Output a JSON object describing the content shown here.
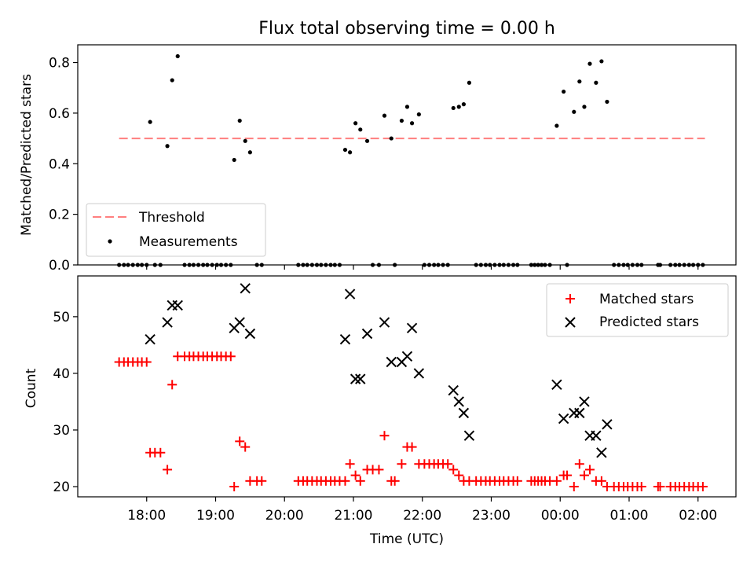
{
  "chart_data": [
    {
      "type": "scatter",
      "title": "Flux total observing time = 0.00 h",
      "xlabel": "",
      "ylabel": "Matched/Predicted stars",
      "xlim_hours": [
        17.0,
        26.55
      ],
      "ylim": [
        0,
        0.87
      ],
      "yticks": [
        0.0,
        0.2,
        0.4,
        0.6,
        0.8
      ],
      "ytick_labels": [
        "0.0",
        "0.2",
        "0.4",
        "0.6",
        "0.8"
      ],
      "xticks_hours": [
        18,
        19,
        20,
        21,
        22,
        23,
        24,
        25,
        26
      ],
      "grid": false,
      "legend": {
        "placement": "lower-left",
        "entries": [
          {
            "label": "Threshold",
            "style": "dashed-line",
            "color": "#ff7f7f"
          },
          {
            "label": "Measurements",
            "style": "dot",
            "color": "#000000"
          }
        ]
      },
      "threshold": {
        "value": 0.5,
        "x_start": 17.6,
        "x_end": 26.1
      },
      "series": [
        {
          "name": "Measurements",
          "points": [
            [
              17.6,
              0
            ],
            [
              17.67,
              0
            ],
            [
              17.73,
              0
            ],
            [
              17.8,
              0
            ],
            [
              17.87,
              0
            ],
            [
              17.93,
              0
            ],
            [
              18.0,
              0
            ],
            [
              18.05,
              0.565
            ],
            [
              18.12,
              0
            ],
            [
              18.2,
              0
            ],
            [
              18.3,
              0.47
            ],
            [
              18.37,
              0.73
            ],
            [
              18.45,
              0.825
            ],
            [
              18.55,
              0
            ],
            [
              18.62,
              0
            ],
            [
              18.68,
              0
            ],
            [
              18.75,
              0
            ],
            [
              18.82,
              0
            ],
            [
              18.88,
              0
            ],
            [
              18.95,
              0
            ],
            [
              19.02,
              0
            ],
            [
              19.08,
              0
            ],
            [
              19.15,
              0
            ],
            [
              19.22,
              0
            ],
            [
              19.27,
              0.415
            ],
            [
              19.35,
              0.57
            ],
            [
              19.43,
              0.49
            ],
            [
              19.5,
              0.445
            ],
            [
              19.6,
              0
            ],
            [
              19.67,
              0
            ],
            [
              20.2,
              0
            ],
            [
              20.27,
              0
            ],
            [
              20.33,
              0
            ],
            [
              20.4,
              0
            ],
            [
              20.47,
              0
            ],
            [
              20.53,
              0
            ],
            [
              20.6,
              0
            ],
            [
              20.67,
              0
            ],
            [
              20.73,
              0
            ],
            [
              20.8,
              0
            ],
            [
              20.88,
              0.455
            ],
            [
              20.95,
              0.445
            ],
            [
              21.03,
              0.56
            ],
            [
              21.1,
              0.535
            ],
            [
              21.2,
              0.49
            ],
            [
              21.28,
              0
            ],
            [
              21.37,
              0
            ],
            [
              21.45,
              0.59
            ],
            [
              21.55,
              0.5
            ],
            [
              21.6,
              0
            ],
            [
              21.7,
              0.57
            ],
            [
              21.78,
              0.625
            ],
            [
              21.85,
              0.56
            ],
            [
              21.95,
              0.595
            ],
            [
              22.03,
              0
            ],
            [
              22.1,
              0
            ],
            [
              22.17,
              0
            ],
            [
              22.23,
              0
            ],
            [
              22.3,
              0
            ],
            [
              22.37,
              0
            ],
            [
              22.45,
              0.62
            ],
            [
              22.53,
              0.625
            ],
            [
              22.6,
              0.635
            ],
            [
              22.68,
              0.72
            ],
            [
              22.78,
              0
            ],
            [
              22.85,
              0
            ],
            [
              22.92,
              0
            ],
            [
              22.98,
              0
            ],
            [
              23.05,
              0
            ],
            [
              23.12,
              0
            ],
            [
              23.18,
              0
            ],
            [
              23.25,
              0
            ],
            [
              23.32,
              0
            ],
            [
              23.38,
              0
            ],
            [
              23.58,
              0
            ],
            [
              23.63,
              0
            ],
            [
              23.68,
              0
            ],
            [
              23.73,
              0
            ],
            [
              23.78,
              0
            ],
            [
              23.85,
              0
            ],
            [
              23.95,
              0.55
            ],
            [
              24.05,
              0.685
            ],
            [
              24.1,
              0
            ],
            [
              24.2,
              0.605
            ],
            [
              24.28,
              0.725
            ],
            [
              24.35,
              0.625
            ],
            [
              24.43,
              0.795
            ],
            [
              24.52,
              0.72
            ],
            [
              24.6,
              0.805
            ],
            [
              24.68,
              0.645
            ],
            [
              24.78,
              0
            ],
            [
              24.85,
              0
            ],
            [
              24.92,
              0
            ],
            [
              24.98,
              0
            ],
            [
              25.05,
              0
            ],
            [
              25.12,
              0
            ],
            [
              25.18,
              0
            ],
            [
              25.42,
              0
            ],
            [
              25.45,
              0
            ],
            [
              25.6,
              0
            ],
            [
              25.67,
              0
            ],
            [
              25.73,
              0
            ],
            [
              25.8,
              0
            ],
            [
              25.87,
              0
            ],
            [
              25.93,
              0
            ],
            [
              26.0,
              0
            ],
            [
              26.07,
              0
            ]
          ]
        }
      ]
    },
    {
      "type": "scatter",
      "title": "",
      "xlabel": "Time (UTC)",
      "ylabel": "Count",
      "xlim_hours": [
        17.0,
        26.55
      ],
      "ylim": [
        18.2,
        57.2
      ],
      "yticks": [
        20,
        30,
        40,
        50
      ],
      "ytick_labels": [
        "20",
        "30",
        "40",
        "50"
      ],
      "xticks_hours": [
        18,
        19,
        20,
        21,
        22,
        23,
        24,
        25,
        26
      ],
      "xtick_labels": [
        "18:00",
        "19:00",
        "20:00",
        "21:00",
        "22:00",
        "23:00",
        "00:00",
        "01:00",
        "02:00"
      ],
      "grid": false,
      "legend": {
        "placement": "top-right",
        "entries": [
          {
            "label": "Matched stars",
            "marker": "plus",
            "color": "#ff0000"
          },
          {
            "label": "Predicted stars",
            "marker": "x",
            "color": "#000000"
          }
        ]
      },
      "series": [
        {
          "name": "Matched stars",
          "marker": "plus",
          "color": "#ff0000",
          "points": [
            [
              17.6,
              42
            ],
            [
              17.67,
              42
            ],
            [
              17.73,
              42
            ],
            [
              17.8,
              42
            ],
            [
              17.87,
              42
            ],
            [
              17.93,
              42
            ],
            [
              18.0,
              42
            ],
            [
              18.05,
              26
            ],
            [
              18.12,
              26
            ],
            [
              18.2,
              26
            ],
            [
              18.3,
              23
            ],
            [
              18.37,
              38
            ],
            [
              18.45,
              43
            ],
            [
              18.55,
              43
            ],
            [
              18.62,
              43
            ],
            [
              18.68,
              43
            ],
            [
              18.75,
              43
            ],
            [
              18.82,
              43
            ],
            [
              18.88,
              43
            ],
            [
              18.95,
              43
            ],
            [
              19.02,
              43
            ],
            [
              19.08,
              43
            ],
            [
              19.15,
              43
            ],
            [
              19.22,
              43
            ],
            [
              19.27,
              20
            ],
            [
              19.35,
              28
            ],
            [
              19.43,
              27
            ],
            [
              19.5,
              21
            ],
            [
              19.6,
              21
            ],
            [
              19.67,
              21
            ],
            [
              20.2,
              21
            ],
            [
              20.27,
              21
            ],
            [
              20.33,
              21
            ],
            [
              20.4,
              21
            ],
            [
              20.47,
              21
            ],
            [
              20.53,
              21
            ],
            [
              20.6,
              21
            ],
            [
              20.67,
              21
            ],
            [
              20.73,
              21
            ],
            [
              20.8,
              21
            ],
            [
              20.88,
              21
            ],
            [
              20.95,
              24
            ],
            [
              21.03,
              22
            ],
            [
              21.1,
              21
            ],
            [
              21.2,
              23
            ],
            [
              21.28,
              23
            ],
            [
              21.37,
              23
            ],
            [
              21.45,
              29
            ],
            [
              21.55,
              21
            ],
            [
              21.6,
              21
            ],
            [
              21.7,
              24
            ],
            [
              21.78,
              27
            ],
            [
              21.85,
              27
            ],
            [
              21.95,
              24
            ],
            [
              22.03,
              24
            ],
            [
              22.1,
              24
            ],
            [
              22.17,
              24
            ],
            [
              22.23,
              24
            ],
            [
              22.3,
              24
            ],
            [
              22.37,
              24
            ],
            [
              22.45,
              23
            ],
            [
              22.53,
              22
            ],
            [
              22.6,
              21
            ],
            [
              22.68,
              21
            ],
            [
              22.78,
              21
            ],
            [
              22.85,
              21
            ],
            [
              22.92,
              21
            ],
            [
              22.98,
              21
            ],
            [
              23.05,
              21
            ],
            [
              23.12,
              21
            ],
            [
              23.18,
              21
            ],
            [
              23.25,
              21
            ],
            [
              23.32,
              21
            ],
            [
              23.38,
              21
            ],
            [
              23.58,
              21
            ],
            [
              23.63,
              21
            ],
            [
              23.68,
              21
            ],
            [
              23.73,
              21
            ],
            [
              23.78,
              21
            ],
            [
              23.85,
              21
            ],
            [
              23.95,
              21
            ],
            [
              24.05,
              22
            ],
            [
              24.1,
              22
            ],
            [
              24.2,
              20
            ],
            [
              24.28,
              24
            ],
            [
              24.35,
              22
            ],
            [
              24.43,
              23
            ],
            [
              24.52,
              21
            ],
            [
              24.6,
              21
            ],
            [
              24.68,
              20
            ],
            [
              24.78,
              20
            ],
            [
              24.85,
              20
            ],
            [
              24.92,
              20
            ],
            [
              24.98,
              20
            ],
            [
              25.05,
              20
            ],
            [
              25.12,
              20
            ],
            [
              25.18,
              20
            ],
            [
              25.42,
              20
            ],
            [
              25.45,
              20
            ],
            [
              25.6,
              20
            ],
            [
              25.67,
              20
            ],
            [
              25.73,
              20
            ],
            [
              25.8,
              20
            ],
            [
              25.87,
              20
            ],
            [
              25.93,
              20
            ],
            [
              26.0,
              20
            ],
            [
              26.07,
              20
            ]
          ]
        },
        {
          "name": "Predicted stars",
          "marker": "x",
          "color": "#000000",
          "points": [
            [
              18.05,
              46
            ],
            [
              18.3,
              49
            ],
            [
              18.37,
              52
            ],
            [
              18.45,
              52
            ],
            [
              19.27,
              48
            ],
            [
              19.35,
              49
            ],
            [
              19.43,
              55
            ],
            [
              19.5,
              47
            ],
            [
              20.88,
              46
            ],
            [
              20.95,
              54
            ],
            [
              21.03,
              39
            ],
            [
              21.1,
              39
            ],
            [
              21.2,
              47
            ],
            [
              21.45,
              49
            ],
            [
              21.55,
              42
            ],
            [
              21.7,
              42
            ],
            [
              21.78,
              43
            ],
            [
              21.85,
              48
            ],
            [
              21.95,
              40
            ],
            [
              22.45,
              37
            ],
            [
              22.53,
              35
            ],
            [
              22.6,
              33
            ],
            [
              22.68,
              29
            ],
            [
              23.95,
              38
            ],
            [
              24.05,
              32
            ],
            [
              24.2,
              33
            ],
            [
              24.28,
              33
            ],
            [
              24.35,
              35
            ],
            [
              24.43,
              29
            ],
            [
              24.52,
              29
            ],
            [
              24.6,
              26
            ],
            [
              24.68,
              31
            ]
          ]
        }
      ]
    }
  ]
}
